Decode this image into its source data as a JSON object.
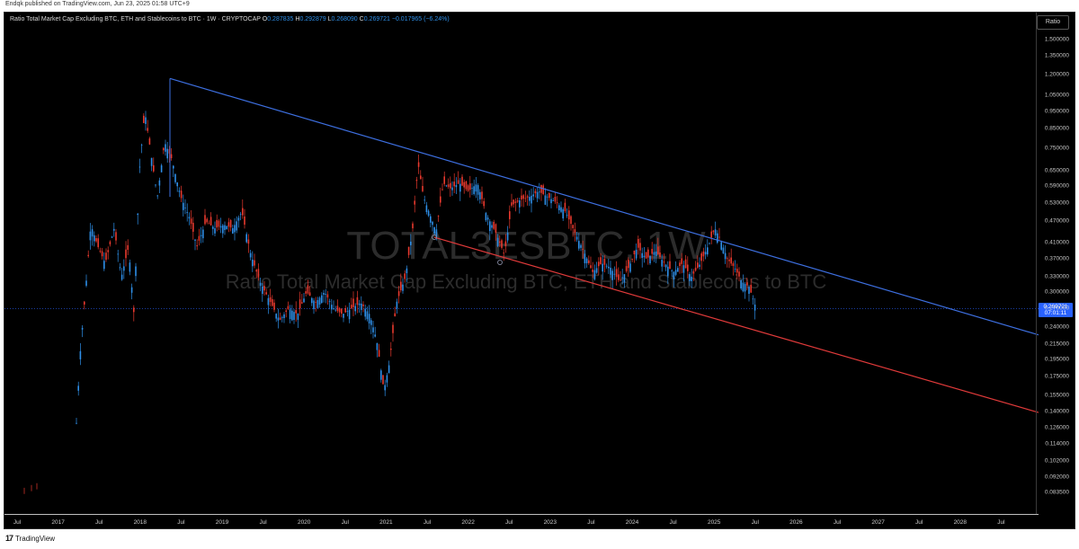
{
  "header": {
    "publisher_text": "Endqk published on TradingView.com, Jun 23, 2025 01:58 UTC+9"
  },
  "legend": {
    "title": "Ratio Total Market Cap Excluding BTC, ETH and Stablecoins to BTC · 1W · CRYPTOCAP",
    "o_label": "O",
    "o_value": "0.287835",
    "h_label": "H",
    "h_value": "0.292879",
    "l_label": "L",
    "l_value": "0.268090",
    "c_label": "C",
    "c_value": "0.269721",
    "change": "−0.017965 (−6.24%)"
  },
  "scale_button": "Ratio",
  "watermark": {
    "symbol": "TOTAL3ESBTC, 1W",
    "description": "Ratio Total Market Cap Excluding BTC, ETH and Stablecoins to BTC"
  },
  "y_axis": {
    "ticks": [
      "1.500000",
      "1.350000",
      "1.200000",
      "1.050000",
      "0.950000",
      "0.850000",
      "0.750000",
      "0.650000",
      "0.590000",
      "0.530000",
      "0.470000",
      "0.410000",
      "0.370000",
      "0.330000",
      "0.300000",
      "0.270000",
      "0.240000",
      "0.215000",
      "0.195000",
      "0.175000",
      "0.155000",
      "0.140000",
      "0.126000",
      "0.114000",
      "0.102000",
      "0.092000",
      "0.083500"
    ],
    "last_price": "0.269721",
    "countdown": "07:01:11"
  },
  "x_axis": {
    "ticks": [
      "Jul",
      "2017",
      "Jul",
      "2018",
      "Jul",
      "2019",
      "Jul",
      "2020",
      "Jul",
      "2021",
      "Jul",
      "2022",
      "Jul",
      "2023",
      "Jul",
      "2024",
      "Jul",
      "2025",
      "Jul",
      "2026",
      "Jul",
      "2027",
      "Jul",
      "2028",
      "Jul"
    ]
  },
  "colors": {
    "up": "#2e8fe8",
    "down": "#e8392e",
    "upper_trendline": "#3d6fe0",
    "lower_trendline": "#e03a3a",
    "price_line": "#2962ff"
  },
  "footer": {
    "brand": "TradingView",
    "logo_text": "17"
  }
}
